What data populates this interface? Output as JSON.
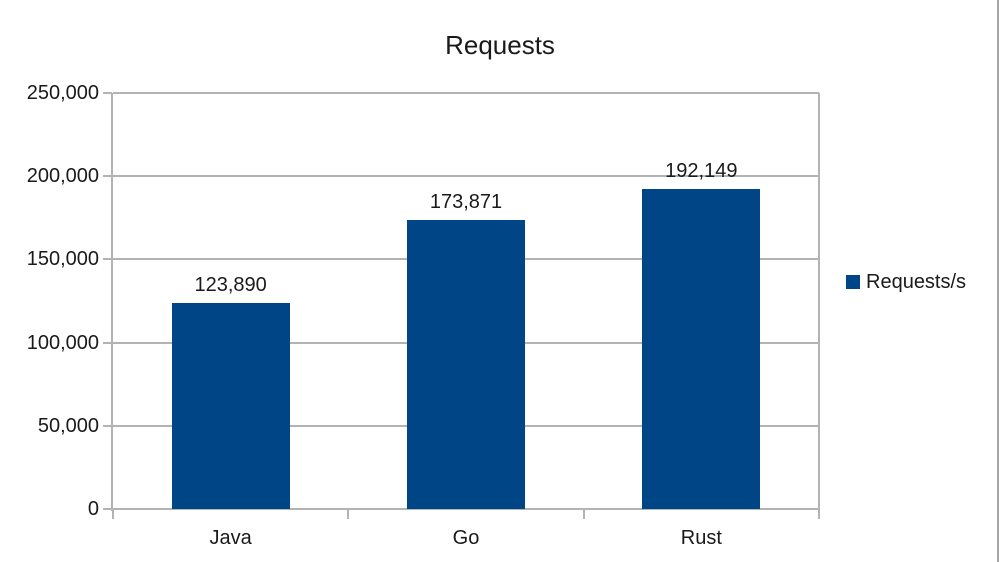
{
  "colors": {
    "bar": "#004586",
    "gridline": "#b3b3b3",
    "axis": "#b3b3b3",
    "text": "#1a1a1a",
    "background": "#ffffff",
    "window_edge": "#a6a6a6"
  },
  "legend": {
    "label": "Requests/s",
    "position": "right",
    "marker_color": "#004586"
  },
  "chart_data": {
    "type": "bar",
    "title": "Requests",
    "categories": [
      "Java",
      "Go",
      "Rust"
    ],
    "series": [
      {
        "name": "Requests/s",
        "values": [
          123890,
          173871,
          192149
        ],
        "color": "#004586"
      }
    ],
    "value_labels": [
      "123,890",
      "173,871",
      "192,149"
    ],
    "xlabel": "",
    "ylabel": "",
    "ylim": [
      0,
      250000
    ],
    "ytick_interval": 50000,
    "yticks": [
      {
        "value": 0,
        "label": "0"
      },
      {
        "value": 50000,
        "label": "50,000"
      },
      {
        "value": 100000,
        "label": "100,000"
      },
      {
        "value": 150000,
        "label": "150,000"
      },
      {
        "value": 200000,
        "label": "200,000"
      },
      {
        "value": 250000,
        "label": "250,000"
      }
    ],
    "grid": "horizontal",
    "legend_position": "right"
  }
}
